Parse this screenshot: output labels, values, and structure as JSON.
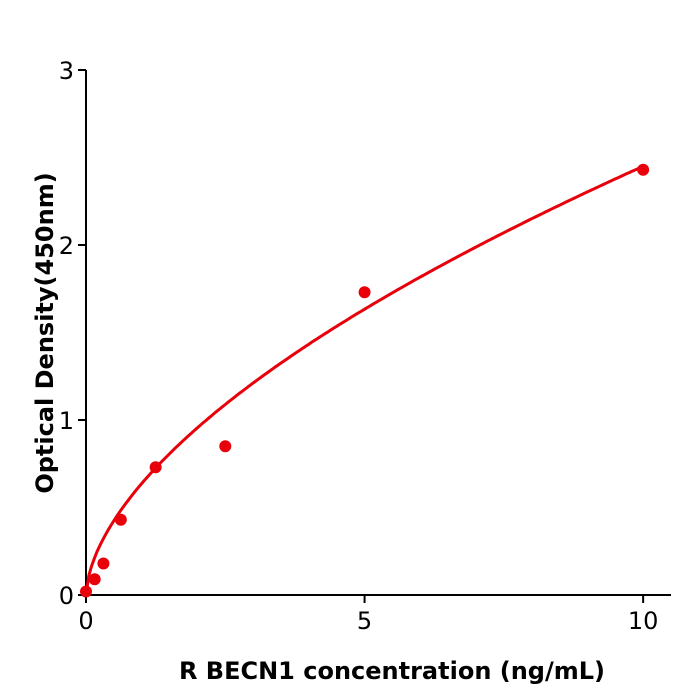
{
  "chart_data": {
    "type": "scatter",
    "title": "",
    "xlabel": "R  BECN1 concentration (ng/mL)",
    "ylabel": "Optical Density(450nm)",
    "xlim": [
      0,
      10.5
    ],
    "ylim": [
      0,
      3
    ],
    "xticks": [
      0,
      5,
      10
    ],
    "yticks": [
      0,
      1,
      2,
      3
    ],
    "grid": false,
    "color": "#e8000b",
    "points": {
      "x": [
        0,
        0.156,
        0.313,
        0.625,
        1.25,
        2.5,
        5,
        10
      ],
      "y": [
        0.02,
        0.09,
        0.18,
        0.43,
        0.73,
        0.85,
        1.73,
        2.43
      ]
    },
    "fit_curve": {
      "model": "power",
      "a": 0.637,
      "b": 0.585
    }
  }
}
